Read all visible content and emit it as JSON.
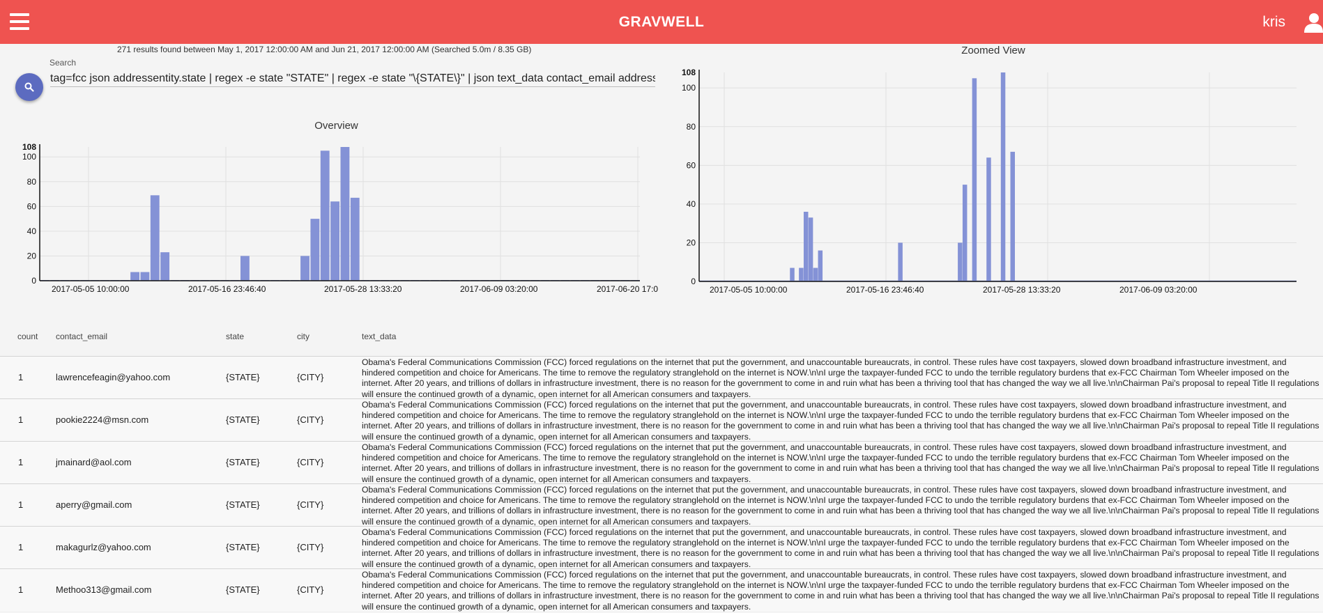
{
  "header": {
    "app_title": "GRAVWELL",
    "user_name": "kris"
  },
  "search": {
    "results_info": "271 results found between May 1, 2017 12:00:00 AM and Jun 21, 2017 12:00:00 AM (Searched 5.0m / 8.35 GB)",
    "label": "Search",
    "query": "tag=fcc json addressentity.state | regex -e state \"STATE\" | regex -e state \"\\{STATE\\}\" | json text_data contact_email addressentity.city | table count contact_email state city text_data"
  },
  "chart_data": [
    {
      "type": "bar",
      "title": "Overview",
      "ylim": [
        0,
        108
      ],
      "max_label": "108",
      "yticks": [
        0,
        20,
        40,
        60,
        80,
        100
      ],
      "xtick_labels": [
        "2017-05-05 10:00:00",
        "2017-05-16 23:46:40",
        "2017-05-28 13:33:20",
        "2017-06-09 03:20:00",
        "2017-06-20 17:0"
      ],
      "color": "#8492d6",
      "values": [
        0,
        0,
        0,
        0,
        0,
        0,
        0,
        0,
        0,
        7,
        7,
        69,
        23,
        0,
        0,
        0,
        0,
        0,
        0,
        0,
        20,
        0,
        0,
        0,
        0,
        0,
        20,
        50,
        105,
        64,
        108,
        67,
        0,
        0,
        0,
        0,
        0,
        0,
        0,
        0,
        0,
        0,
        0,
        0,
        0,
        0,
        0,
        0,
        0,
        0,
        0,
        0,
        0,
        0,
        0,
        0,
        0,
        0,
        0,
        0
      ]
    },
    {
      "type": "bar",
      "title": "Zoomed View",
      "ylim": [
        0,
        108
      ],
      "max_label": "108",
      "yticks": [
        0,
        20,
        40,
        60,
        80,
        100
      ],
      "xtick_labels": [
        "2017-05-05 10:00:00",
        "2017-05-16 23:46:40",
        "2017-05-28 13:33:20",
        "2017-06-09 03:20:00"
      ],
      "color": "#8492d6",
      "bars": [
        {
          "pos": 0.152,
          "value": 7
        },
        {
          "pos": 0.167,
          "value": 7
        },
        {
          "pos": 0.175,
          "value": 36
        },
        {
          "pos": 0.183,
          "value": 33
        },
        {
          "pos": 0.191,
          "value": 7
        },
        {
          "pos": 0.199,
          "value": 16
        },
        {
          "pos": 0.333,
          "value": 20
        },
        {
          "pos": 0.433,
          "value": 20
        },
        {
          "pos": 0.441,
          "value": 50
        },
        {
          "pos": 0.457,
          "value": 105
        },
        {
          "pos": 0.481,
          "value": 64
        },
        {
          "pos": 0.505,
          "value": 108
        },
        {
          "pos": 0.521,
          "value": 67
        }
      ]
    }
  ],
  "table": {
    "headers": [
      "count",
      "contact_email",
      "state",
      "city",
      "text_data"
    ],
    "rows": [
      {
        "count": "1",
        "email": "lawrencefeagin@yahoo.com",
        "state": "{STATE}",
        "city": "{CITY}",
        "text": "Obama's Federal Communications Commission (FCC) forced regulations on the internet that put the government, and unaccountable bureaucrats, in control. These rules have cost taxpayers, slowed down broadband infrastructure investment, and hindered competition and choice for Americans. The time to remove the regulatory stranglehold on the internet is NOW.\\n\\nI urge the taxpayer-funded FCC to undo the terrible regulatory burdens that ex-FCC Chairman Tom Wheeler imposed on the internet. After 20 years, and trillions of dollars in infrastructure investment, there is no reason for the government to come in and ruin what has been a thriving tool that has changed the way we all live.\\n\\nChairman Pai's proposal to repeal Title II regulations will ensure the continued growth of a dynamic, open internet for all American consumers and taxpayers."
      },
      {
        "count": "1",
        "email": "pookie2224@msn.com",
        "state": "{STATE}",
        "city": "{CITY}",
        "text": "Obama's Federal Communications Commission (FCC) forced regulations on the internet that put the government, and unaccountable bureaucrats, in control. These rules have cost taxpayers, slowed down broadband infrastructure investment, and hindered competition and choice for Americans. The time to remove the regulatory stranglehold on the internet is NOW.\\n\\nI urge the taxpayer-funded FCC to undo the terrible regulatory burdens that ex-FCC Chairman Tom Wheeler imposed on the internet. After 20 years, and trillions of dollars in infrastructure investment, there is no reason for the government to come in and ruin what has been a thriving tool that has changed the way we all live.\\n\\nChairman Pai's proposal to repeal Title II regulations will ensure the continued growth of a dynamic, open internet for all American consumers and taxpayers."
      },
      {
        "count": "1",
        "email": "jmainard@aol.com",
        "state": "{STATE}",
        "city": "{CITY}",
        "text": "Obama's Federal Communications Commission (FCC) forced regulations on the internet that put the government, and unaccountable bureaucrats, in control. These rules have cost taxpayers, slowed down broadband infrastructure investment, and hindered competition and choice for Americans. The time to remove the regulatory stranglehold on the internet is NOW.\\n\\nI urge the taxpayer-funded FCC to undo the terrible regulatory burdens that ex-FCC Chairman Tom Wheeler imposed on the internet. After 20 years, and trillions of dollars in infrastructure investment, there is no reason for the government to come in and ruin what has been a thriving tool that has changed the way we all live.\\n\\nChairman Pai's proposal to repeal Title II regulations will ensure the continued growth of a dynamic, open internet for all American consumers and taxpayers."
      },
      {
        "count": "1",
        "email": "aperry@gmail.com",
        "state": "{STATE}",
        "city": "{CITY}",
        "text": "Obama's Federal Communications Commission (FCC) forced regulations on the internet that put the government, and unaccountable bureaucrats, in control. These rules have cost taxpayers, slowed down broadband infrastructure investment, and hindered competition and choice for Americans. The time to remove the regulatory stranglehold on the internet is NOW.\\n\\nI urge the taxpayer-funded FCC to undo the terrible regulatory burdens that ex-FCC Chairman Tom Wheeler imposed on the internet. After 20 years, and trillions of dollars in infrastructure investment, there is no reason for the government to come in and ruin what has been a thriving tool that has changed the way we all live.\\n\\nChairman Pai's proposal to repeal Title II regulations will ensure the continued growth of a dynamic, open internet for all American consumers and taxpayers."
      },
      {
        "count": "1",
        "email": "makagurlz@yahoo.com",
        "state": "{STATE}",
        "city": "{CITY}",
        "text": "Obama's Federal Communications Commission (FCC) forced regulations on the internet that put the government, and unaccountable bureaucrats, in control. These rules have cost taxpayers, slowed down broadband infrastructure investment, and hindered competition and choice for Americans. The time to remove the regulatory stranglehold on the internet is NOW.\\n\\nI urge the taxpayer-funded FCC to undo the terrible regulatory burdens that ex-FCC Chairman Tom Wheeler imposed on the internet. After 20 years, and trillions of dollars in infrastructure investment, there is no reason for the government to come in and ruin what has been a thriving tool that has changed the way we all live.\\n\\nChairman Pai's proposal to repeal Title II regulations will ensure the continued growth of a dynamic, open internet for all American consumers and taxpayers."
      },
      {
        "count": "1",
        "email": "Methoo313@gmail.com",
        "state": "{STATE}",
        "city": "{CITY}",
        "text": "Obama's Federal Communications Commission (FCC) forced regulations on the internet that put the government, and unaccountable bureaucrats, in control. These rules have cost taxpayers, slowed down broadband infrastructure investment, and hindered competition and choice for Americans. The time to remove the regulatory stranglehold on the internet is NOW.\\n\\nI urge the taxpayer-funded FCC to undo the terrible regulatory burdens that ex-FCC Chairman Tom Wheeler imposed on the internet. After 20 years, and trillions of dollars in infrastructure investment, there is no reason for the government to come in and ruin what has been a thriving tool that has changed the way we all live.\\n\\nChairman Pai's proposal to repeal Title II regulations will ensure the continued growth of a dynamic, open internet for all American consumers and taxpayers."
      }
    ]
  }
}
